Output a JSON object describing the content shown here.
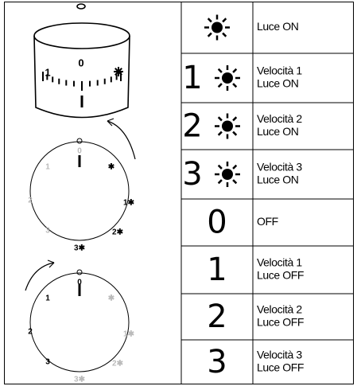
{
  "knob": {
    "labels": [
      "1",
      "0"
    ]
  },
  "dial_on": {
    "labels": [
      "0",
      "1",
      "2",
      "3",
      "✱",
      "1✱",
      "2✱",
      "3✱"
    ]
  },
  "dial_off": {
    "labels": [
      "0",
      "1",
      "2",
      "3",
      "✱",
      "1✱",
      "2✱",
      "3✱"
    ]
  },
  "table": {
    "rows": [
      {
        "sun": true,
        "text": [
          "Luce ON"
        ]
      },
      {
        "digit": "1",
        "sun": true,
        "text": [
          "Velocità 1",
          "Luce ON"
        ]
      },
      {
        "digit": "2",
        "sun": true,
        "text": [
          "Velocità 2",
          "Luce ON"
        ]
      },
      {
        "digit": "3",
        "sun": true,
        "text": [
          "Velocità 3",
          "Luce ON"
        ]
      },
      {
        "digit": "0",
        "sun": false,
        "text": [
          "OFF"
        ]
      },
      {
        "digit": "1",
        "sun": false,
        "text": [
          "Velocità 1",
          "Luce OFF"
        ]
      },
      {
        "digit": "2",
        "sun": false,
        "text": [
          "Velocità 2",
          "Luce OFF"
        ]
      },
      {
        "digit": "3",
        "sun": false,
        "text": [
          "Velocità 3",
          "Luce OFF"
        ]
      }
    ]
  }
}
